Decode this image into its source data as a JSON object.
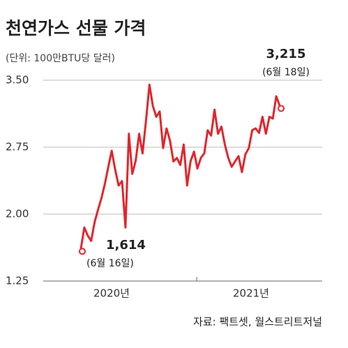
{
  "chart_data": {
    "type": "line",
    "title": "천연가스 선물 가격",
    "subtitle": "(단위: 100만BTU당 달러)",
    "color": "#e0262d",
    "ylim": [
      1.25,
      3.5
    ],
    "yticks": [
      {
        "value": 3.5,
        "label": "3.50"
      },
      2.75,
      {
        "value": 2.0,
        "label": "2.00"
      },
      1.25
    ],
    "grid": true,
    "x_axis_labels": [
      "2020년",
      "2021년"
    ],
    "values": [
      1.614,
      1.85,
      1.76,
      1.7,
      1.91,
      2.05,
      2.18,
      2.34,
      2.53,
      2.71,
      2.5,
      2.32,
      2.37,
      1.85,
      2.9,
      2.45,
      2.6,
      2.9,
      2.68,
      3.05,
      3.45,
      3.21,
      3.09,
      3.15,
      2.74,
      2.96,
      2.82,
      2.59,
      2.63,
      2.55,
      2.78,
      2.32,
      2.59,
      2.7,
      2.51,
      2.63,
      2.68,
      2.94,
      2.88,
      3.17,
      2.9,
      2.98,
      2.78,
      2.63,
      2.53,
      2.59,
      2.65,
      2.47,
      2.67,
      2.74,
      2.94,
      2.96,
      2.91,
      3.09,
      2.9,
      3.09,
      3.07,
      3.32,
      3.215
    ],
    "annotations": [
      {
        "label": "1,614",
        "note": "(6월 16일)",
        "value": 1.614
      },
      {
        "label": "3,215",
        "note": "(6월 18일)",
        "value": 3.215
      }
    ],
    "source": "자료: 팩트셋, 월스트리트저널"
  }
}
